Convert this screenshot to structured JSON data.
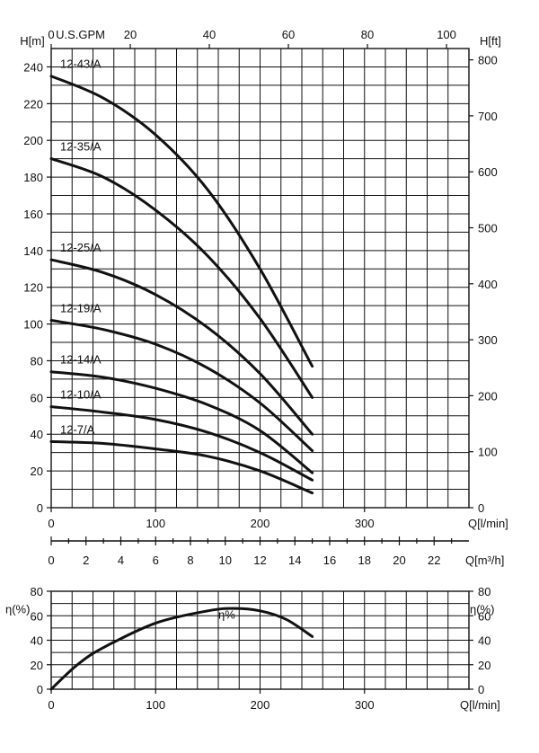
{
  "chart_data": [
    {
      "type": "line",
      "title": "",
      "xlabel": "Q[l/min]",
      "ylabel": "H[m]",
      "y2label": "H[ft]",
      "x2label": "U.S.GPM",
      "xlim": [
        0,
        400
      ],
      "ylim": [
        0,
        250
      ],
      "x_ticks": [
        0,
        100,
        200,
        300
      ],
      "y_ticks": [
        0,
        20,
        40,
        60,
        80,
        100,
        120,
        140,
        160,
        180,
        200,
        220,
        240
      ],
      "y2_ticks": [
        0,
        100,
        200,
        300,
        400,
        500,
        600,
        700,
        800
      ],
      "x2_ticks": [
        0,
        20,
        40,
        60,
        80,
        100
      ],
      "grid": true,
      "series": [
        {
          "name": "12-43/A",
          "x": [
            0,
            50,
            100,
            150,
            200,
            250
          ],
          "y": [
            235,
            223,
            203,
            173,
            130,
            77
          ]
        },
        {
          "name": "12-35/A",
          "x": [
            0,
            50,
            100,
            150,
            200,
            250
          ],
          "y": [
            190,
            180,
            162,
            137,
            103,
            60
          ]
        },
        {
          "name": "12-25/A",
          "x": [
            0,
            50,
            100,
            150,
            200,
            250
          ],
          "y": [
            135,
            128,
            116,
            98,
            73,
            40
          ]
        },
        {
          "name": "12-19/A",
          "x": [
            0,
            50,
            100,
            150,
            200,
            250
          ],
          "y": [
            102,
            97,
            89,
            76,
            57,
            31
          ]
        },
        {
          "name": "12-14/A",
          "x": [
            0,
            50,
            100,
            150,
            200,
            250
          ],
          "y": [
            74,
            71,
            65,
            56,
            42,
            19
          ]
        },
        {
          "name": "12-10/A",
          "x": [
            0,
            50,
            100,
            150,
            200,
            250
          ],
          "y": [
            55,
            52,
            48,
            41,
            30,
            15
          ]
        },
        {
          "name": "12-7/A",
          "x": [
            0,
            50,
            100,
            150,
            200,
            250
          ],
          "y": [
            36,
            35,
            32,
            28,
            20,
            8
          ]
        }
      ]
    },
    {
      "type": "axis",
      "xlabel": "Q[m³/h]",
      "xlim": [
        0,
        24
      ],
      "x_ticks": [
        0,
        2,
        4,
        6,
        8,
        10,
        12,
        14,
        16,
        18,
        20,
        22
      ]
    },
    {
      "type": "line",
      "title": "",
      "xlabel": "Q[l/min]",
      "ylabel": "η(%)",
      "y2label": "η(%)",
      "xlim": [
        0,
        400
      ],
      "ylim": [
        0,
        80
      ],
      "x_ticks": [
        0,
        100,
        200,
        300
      ],
      "y_ticks": [
        0,
        20,
        40,
        60,
        80
      ],
      "grid": true,
      "series": [
        {
          "name": "η%",
          "x": [
            0,
            25,
            50,
            100,
            150,
            175,
            200,
            225,
            250
          ],
          "y": [
            0,
            20,
            34,
            54,
            64,
            66,
            64,
            57,
            43
          ]
        }
      ]
    }
  ]
}
